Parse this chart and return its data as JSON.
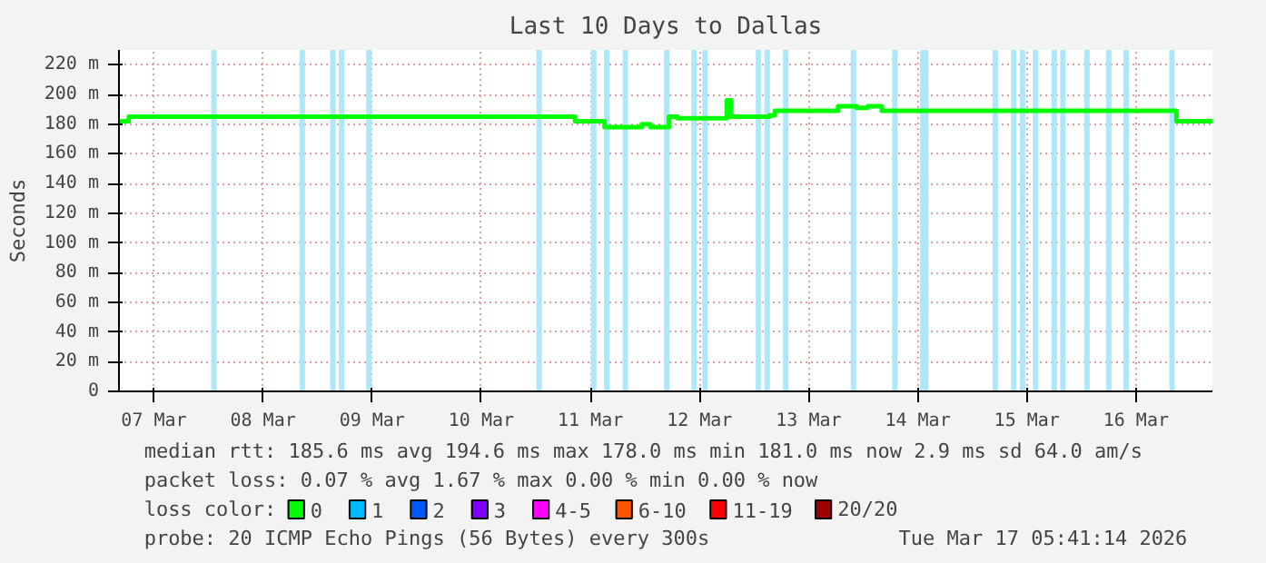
{
  "chart_data": {
    "type": "step",
    "title": "Last 10 Days to Dallas",
    "ylabel": "Seconds",
    "xlim": [
      "2026-03-07T04:19",
      "2026-03-17T04:48"
    ],
    "ylim": [
      0,
      230
    ],
    "xticks": [
      {
        "value": "2026-03-07T12:00",
        "label": "07 Mar"
      },
      {
        "value": "2026-03-08T12:00",
        "label": "08 Mar"
      },
      {
        "value": "2026-03-09T12:00",
        "label": "09 Mar"
      },
      {
        "value": "2026-03-10T12:00",
        "label": "10 Mar"
      },
      {
        "value": "2026-03-11T12:00",
        "label": "11 Mar"
      },
      {
        "value": "2026-03-12T12:00",
        "label": "12 Mar"
      },
      {
        "value": "2026-03-13T12:00",
        "label": "13 Mar"
      },
      {
        "value": "2026-03-14T12:00",
        "label": "14 Mar"
      },
      {
        "value": "2026-03-15T12:00",
        "label": "15 Mar"
      },
      {
        "value": "2026-03-16T12:00",
        "label": "16 Mar"
      }
    ],
    "yticks": [
      0,
      {
        "value": 20,
        "label": "20 m"
      },
      {
        "value": 40,
        "label": "40 m"
      },
      {
        "value": 60,
        "label": "60 m"
      },
      {
        "value": 80,
        "label": "80 m"
      },
      {
        "value": 100,
        "label": "100 m"
      },
      {
        "value": 120,
        "label": "120 m"
      },
      {
        "value": 140,
        "label": "140 m"
      },
      {
        "value": 160,
        "label": "160 m"
      },
      {
        "value": 180,
        "label": "180 m"
      },
      {
        "value": 200,
        "label": "200 m"
      },
      {
        "value": 220,
        "label": "220 m"
      }
    ],
    "grid": true,
    "legend": "bottom",
    "series": [
      {
        "name": "0",
        "color": "#00ff00",
        "x": [
          "2026-03-07T04:19",
          "2026-03-07T06:29",
          "2026-03-11T08:38",
          "2026-03-11T15:07",
          "2026-03-11T23:17",
          "2026-03-12T01:12",
          "2026-03-12T05:17",
          "2026-03-12T07:12",
          "2026-03-12T18:00",
          "2026-03-12T18:58",
          "2026-03-13T03:22",
          "2026-03-13T04:34",
          "2026-03-13T18:29",
          "2026-03-13T22:34",
          "2026-03-14T00:58",
          "2026-03-14T04:05",
          "2026-03-16T20:53",
          "2026-03-17T04:48"
        ],
        "values": [
          182,
          185,
          182,
          178,
          180,
          178,
          185,
          184,
          196,
          185,
          186,
          189,
          192,
          191,
          192,
          189,
          182,
          182
        ]
      },
      {
        "name": "1",
        "color": "#00b8ff"
      },
      {
        "name": "2",
        "color": "#0059ff"
      },
      {
        "name": "3",
        "color": "#7e00ff"
      },
      {
        "name": "4-5",
        "color": "#ff00ff"
      },
      {
        "name": "6-10",
        "color": "#ff5500"
      },
      {
        "name": "11-19",
        "color": "#ff0000"
      },
      {
        "name": "20/20",
        "color": "#a10000"
      }
    ],
    "bands": [
      {
        "axis": "x",
        "from": "2026-03-08T00:36",
        "to": "2026-03-08T01:48",
        "color": "#aee6fa"
      },
      {
        "axis": "x",
        "from": "2026-03-08T20:02",
        "to": "2026-03-08T21:14",
        "color": "#aee6fa"
      },
      {
        "axis": "x",
        "from": "2026-03-09T02:46",
        "to": "2026-03-09T03:58",
        "color": "#aee6fa"
      },
      {
        "axis": "x",
        "from": "2026-03-09T04:41",
        "to": "2026-03-09T05:53",
        "color": "#aee6fa"
      },
      {
        "axis": "x",
        "from": "2026-03-09T10:41",
        "to": "2026-03-09T11:53",
        "color": "#aee6fa"
      },
      {
        "axis": "x",
        "from": "2026-03-11T00:07",
        "to": "2026-03-11T01:19",
        "color": "#aee6fa"
      },
      {
        "axis": "x",
        "from": "2026-03-11T12:07",
        "to": "2026-03-11T13:19",
        "color": "#aee6fa"
      },
      {
        "axis": "x",
        "from": "2026-03-11T15:00",
        "to": "2026-03-11T16:12",
        "color": "#aee6fa"
      },
      {
        "axis": "x",
        "from": "2026-03-11T19:05",
        "to": "2026-03-11T20:17",
        "color": "#aee6fa"
      },
      {
        "axis": "x",
        "from": "2026-03-12T04:12",
        "to": "2026-03-12T05:24",
        "color": "#aee6fa"
      },
      {
        "axis": "x",
        "from": "2026-03-12T10:12",
        "to": "2026-03-12T11:24",
        "color": "#aee6fa"
      },
      {
        "axis": "x",
        "from": "2026-03-12T12:36",
        "to": "2026-03-12T13:48",
        "color": "#aee6fa"
      },
      {
        "axis": "x",
        "from": "2026-03-13T00:22",
        "to": "2026-03-13T01:34",
        "color": "#aee6fa"
      },
      {
        "axis": "x",
        "from": "2026-03-13T02:17",
        "to": "2026-03-13T03:29",
        "color": "#aee6fa"
      },
      {
        "axis": "x",
        "from": "2026-03-13T06:22",
        "to": "2026-03-13T07:34",
        "color": "#aee6fa"
      },
      {
        "axis": "x",
        "from": "2026-03-13T21:14",
        "to": "2026-03-13T22:26",
        "color": "#aee6fa"
      },
      {
        "axis": "x",
        "from": "2026-03-14T06:22",
        "to": "2026-03-14T07:34",
        "color": "#aee6fa"
      },
      {
        "axis": "x",
        "from": "2026-03-14T12:30",
        "to": "2026-03-14T14:22",
        "color": "#aee6fa"
      },
      {
        "axis": "x",
        "from": "2026-03-15T04:26",
        "to": "2026-03-15T05:38",
        "color": "#aee6fa"
      },
      {
        "axis": "x",
        "from": "2026-03-15T08:31",
        "to": "2026-03-15T09:43",
        "color": "#aee6fa"
      },
      {
        "axis": "x",
        "from": "2026-03-15T10:26",
        "to": "2026-03-15T11:38",
        "color": "#aee6fa"
      },
      {
        "axis": "x",
        "from": "2026-03-15T13:19",
        "to": "2026-03-15T14:31",
        "color": "#aee6fa"
      },
      {
        "axis": "x",
        "from": "2026-03-15T17:24",
        "to": "2026-03-15T18:36",
        "color": "#aee6fa"
      },
      {
        "axis": "x",
        "from": "2026-03-15T19:19",
        "to": "2026-03-15T20:31",
        "color": "#aee6fa"
      },
      {
        "axis": "x",
        "from": "2026-03-16T00:36",
        "to": "2026-03-16T01:48",
        "color": "#aee6fa"
      },
      {
        "axis": "x",
        "from": "2026-03-16T05:24",
        "to": "2026-03-16T06:36",
        "color": "#aee6fa"
      },
      {
        "axis": "x",
        "from": "2026-03-16T09:14",
        "to": "2026-03-16T10:26",
        "color": "#aee6fa"
      },
      {
        "axis": "x",
        "from": "2026-03-16T19:19",
        "to": "2026-03-16T20:31",
        "color": "#aee6fa"
      }
    ],
    "annotations": [
      "median rtt:  185.6 ms avg  194.6 ms max  178.0 ms min  181.0 ms now  2.9 ms sd  64.0   am/s",
      "packet loss: 0.07 % avg  1.67 % max  0.00 % min  0.00 % now",
      "loss color:",
      "probe:       20 ICMP Echo Pings (56 Bytes) every 300s",
      "Tue Mar 17 05:41:14 2026"
    ]
  }
}
